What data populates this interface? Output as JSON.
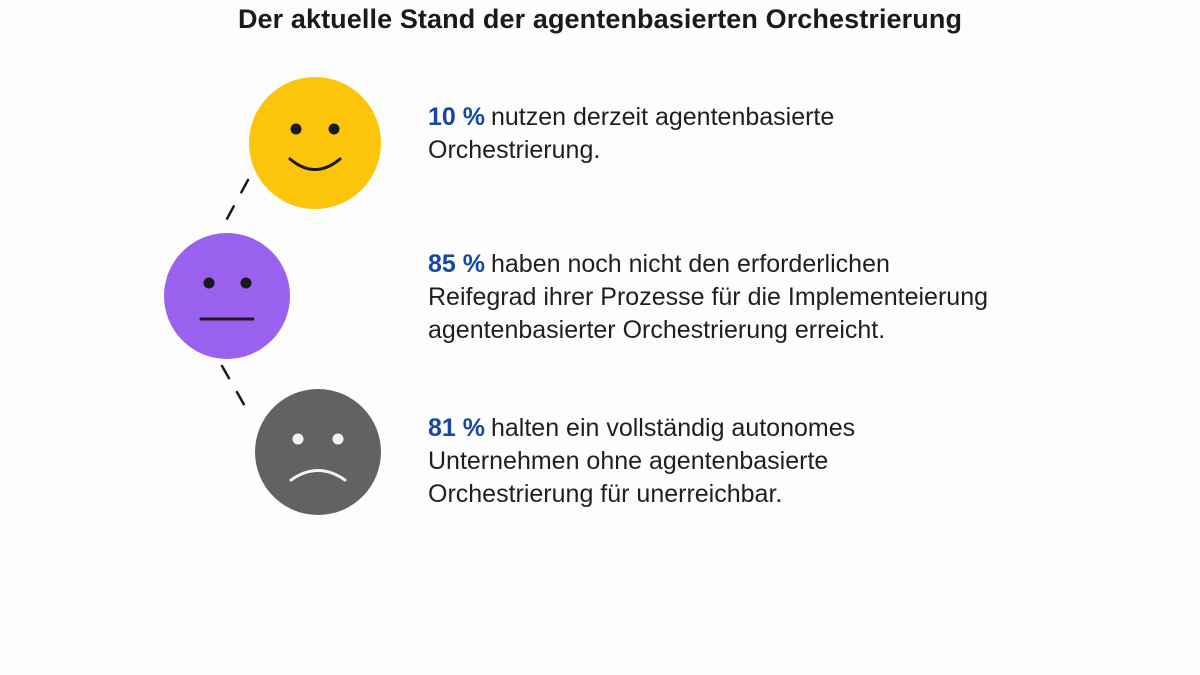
{
  "title": "Der aktuelle Stand der agentenbasierten Orchestrierung",
  "colors": {
    "happy": "#fcc40a",
    "neutral": "#9a60ee",
    "sad": "#626262",
    "accent": "#1646a6"
  },
  "faces": [
    {
      "icon": "happy-face-icon",
      "color": "#fcc40a"
    },
    {
      "icon": "neutral-face-icon",
      "color": "#9a60ee"
    },
    {
      "icon": "sad-face-icon",
      "color": "#626262"
    }
  ],
  "stats": [
    {
      "percent": "10 %",
      "lines": [
        "nutzen derzeit agentenbasierte",
        "Orchestrierung."
      ]
    },
    {
      "percent": "85 %",
      "lines": [
        "haben noch nicht den erforderlichen",
        "Reifegrad ihrer Prozesse für die Implementeierung",
        "agentenbasierter Orchestrierung erreicht."
      ]
    },
    {
      "percent": "81 %",
      "lines": [
        "halten ein vollständig autonomes",
        "Unternehmen ohne agentenbasierte",
        "Orchestrierung für unerreichbar."
      ]
    }
  ]
}
